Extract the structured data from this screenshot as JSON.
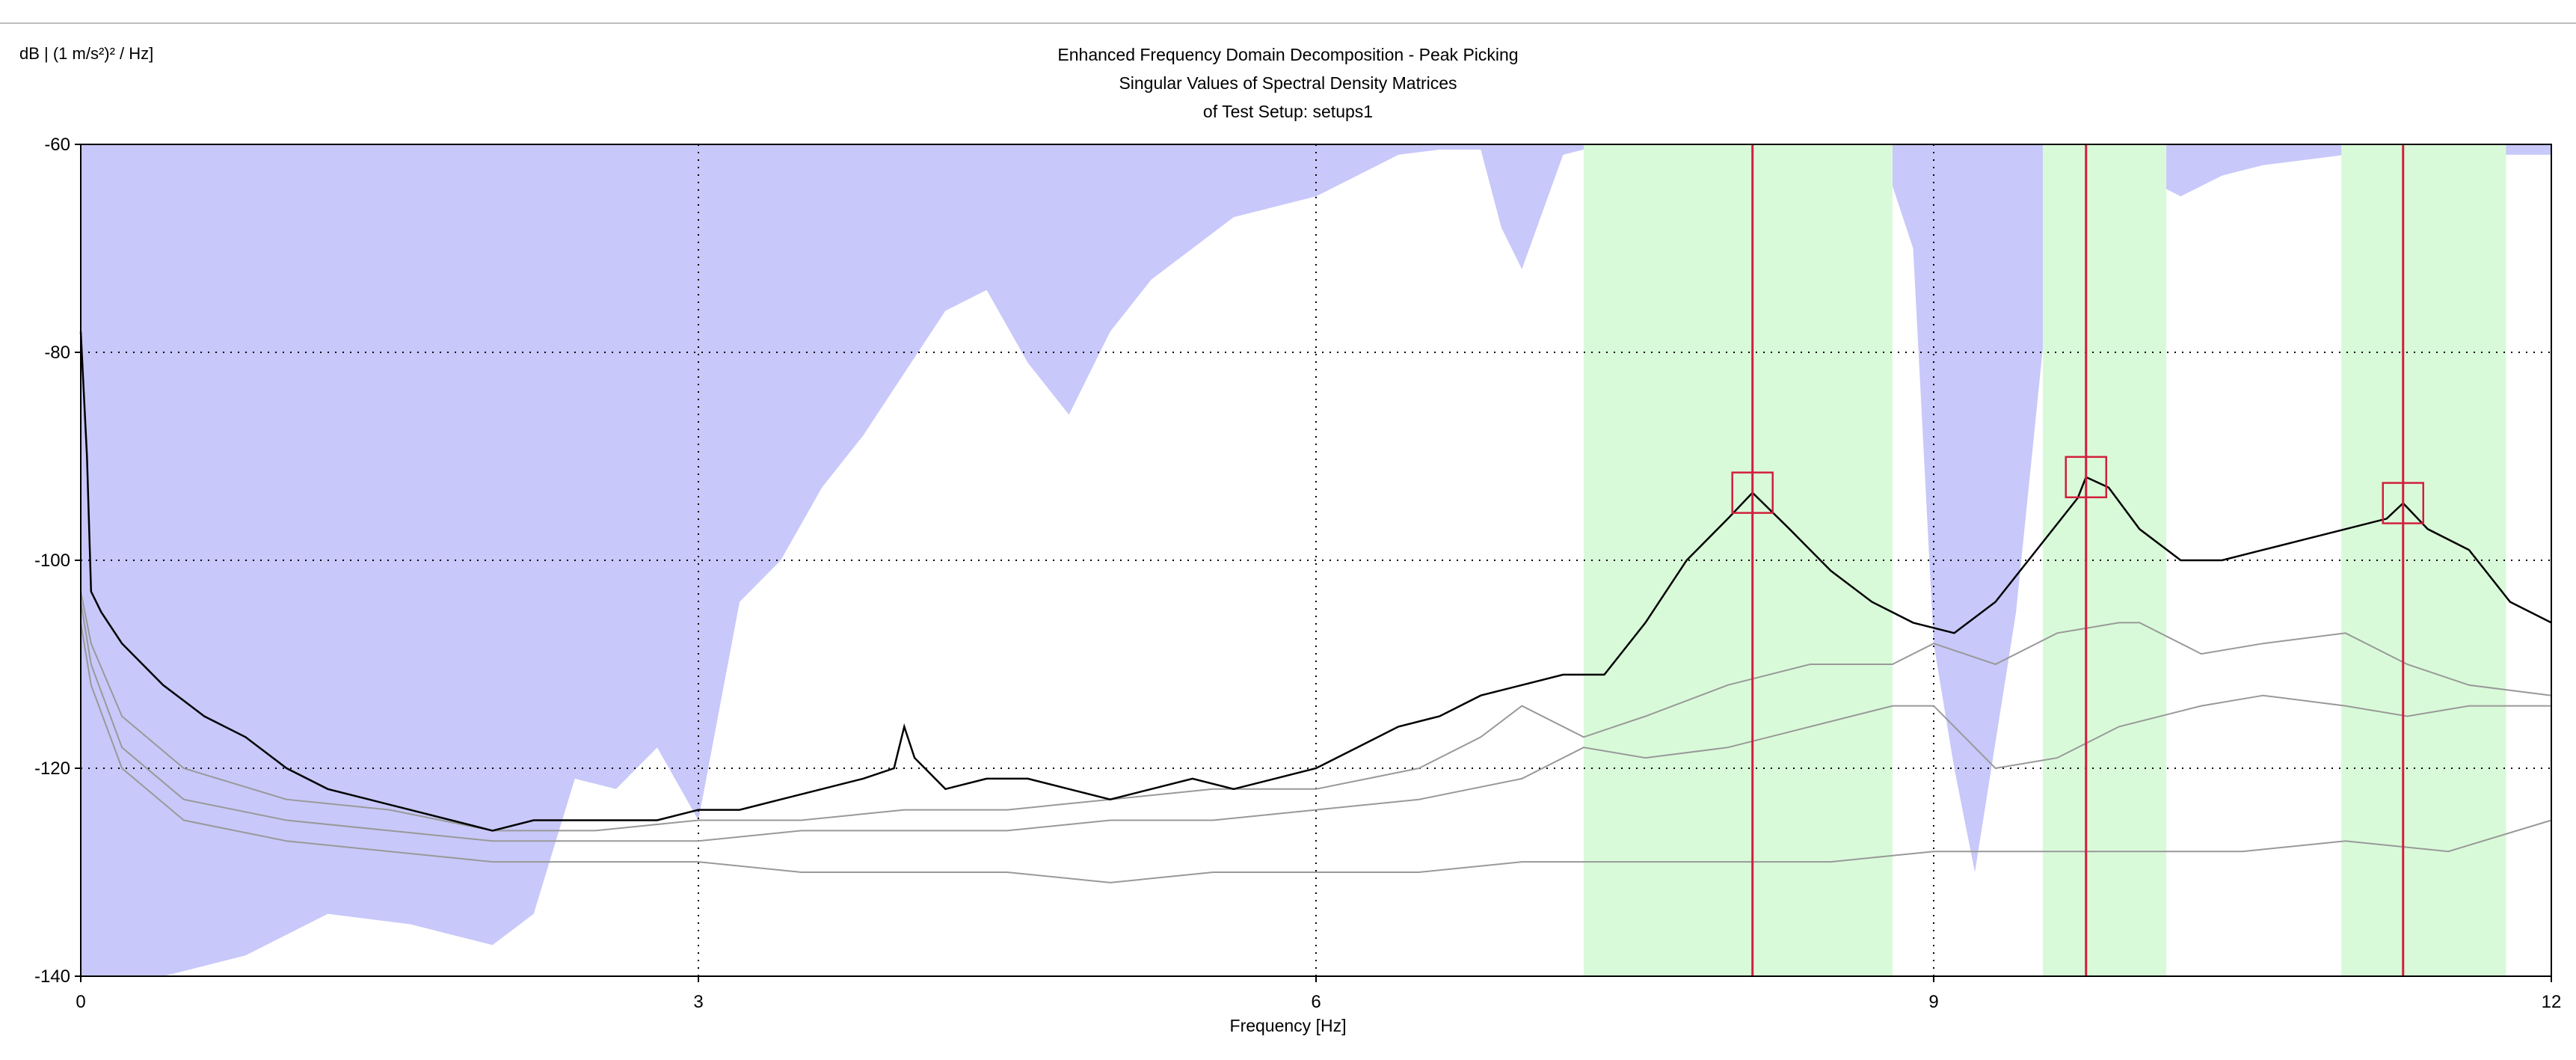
{
  "chart_data": {
    "type": "line",
    "title": "Enhanced Frequency Domain Decomposition - Peak Picking",
    "subtitle": [
      "Singular Values of Spectral Density Matrices",
      "of Test Setup: setups1"
    ],
    "xlabel": "Frequency [Hz]",
    "ylabel": "dB | (1 m/s²)² / Hz]",
    "xlim": [
      0,
      12
    ],
    "ylim": [
      -140,
      -60
    ],
    "x_ticks": [
      "0",
      "3",
      "6",
      "9",
      "12"
    ],
    "y_ticks": [
      "-60",
      "-80",
      "-100",
      "-120",
      "-140"
    ],
    "grid": "dotted",
    "colors": {
      "coherence_fill": "#c8c8fa",
      "selection_band": "#d9fad9",
      "first_singular_value": "#000000",
      "other_singular_values": "#999999",
      "peak_marker": "#d21e3c",
      "grid": "#000000"
    },
    "selection_bands": [
      [
        7.3,
        8.8
      ],
      [
        9.53,
        10.13
      ],
      [
        10.98,
        11.78
      ]
    ],
    "peaks": [
      {
        "x": 8.12,
        "y": -93.5
      },
      {
        "x": 9.74,
        "y": -92.0
      },
      {
        "x": 11.28,
        "y": -94.5
      }
    ],
    "series": [
      {
        "x": [
          0,
          0.03,
          0.05,
          0.1,
          0.2,
          0.4,
          0.6,
          0.8,
          1.0,
          1.2,
          1.4,
          1.6,
          1.8,
          2.0,
          2.2,
          2.4,
          2.6,
          2.8,
          3.0,
          3.2,
          3.4,
          3.6,
          3.8,
          3.95,
          4.0,
          4.05,
          4.2,
          4.4,
          4.6,
          4.8,
          5.0,
          5.2,
          5.4,
          5.6,
          5.8,
          6.0,
          6.2,
          6.4,
          6.6,
          6.8,
          7.0,
          7.2,
          7.4,
          7.6,
          7.8,
          8.0,
          8.12,
          8.3,
          8.5,
          8.7,
          8.9,
          9.1,
          9.3,
          9.5,
          9.7,
          9.74,
          9.85,
          10.0,
          10.2,
          10.4,
          10.6,
          10.8,
          11.0,
          11.2,
          11.28,
          11.4,
          11.6,
          11.8,
          12.0
        ],
        "values": [
          -78,
          -90,
          -103,
          -105,
          -108,
          -112,
          -115,
          -117,
          -120,
          -122,
          -123,
          -124,
          -125,
          -126,
          -125,
          -125,
          -125,
          -125,
          -124,
          -124,
          -123,
          -122,
          -121,
          -120,
          -116,
          -119,
          -122,
          -121,
          -121,
          -122,
          -123,
          -122,
          -121,
          -122,
          -121,
          -120,
          -118,
          -116,
          -115,
          -113,
          -112,
          -111,
          -111,
          -106,
          -100,
          -96,
          -93.5,
          -97,
          -101,
          -104,
          -106,
          -107,
          -104,
          -99,
          -94,
          -92,
          -93,
          -97,
          -100,
          -100,
          -99,
          -98,
          -97,
          -96,
          -94.5,
          -97,
          -99,
          -104,
          -106
        ]
      },
      {
        "x": [
          0,
          0.05,
          0.2,
          0.5,
          1.0,
          1.5,
          2.0,
          2.5,
          3.0,
          3.5,
          4.0,
          4.5,
          5.0,
          5.5,
          6.0,
          6.5,
          6.8,
          7.0,
          7.3,
          7.6,
          8.0,
          8.4,
          8.8,
          9.0,
          9.3,
          9.6,
          9.9,
          10.0,
          10.3,
          10.6,
          11.0,
          11.3,
          11.6,
          12.0
        ],
        "values": [
          -103,
          -108,
          -115,
          -120,
          -123,
          -124,
          -126,
          -126,
          -125,
          -125,
          -124,
          -124,
          -123,
          -122,
          -122,
          -120,
          -117,
          -114,
          -117,
          -115,
          -112,
          -110,
          -110,
          -108,
          -110,
          -107,
          -106,
          -106,
          -109,
          -108,
          -107,
          -110,
          -112,
          -113
        ]
      },
      {
        "x": [
          0,
          0.05,
          0.2,
          0.5,
          1.0,
          1.5,
          2.0,
          2.5,
          3.0,
          3.5,
          4.0,
          4.5,
          5.0,
          5.5,
          6.0,
          6.5,
          7.0,
          7.3,
          7.6,
          8.0,
          8.4,
          8.8,
          9.0,
          9.3,
          9.6,
          9.9,
          10.3,
          10.6,
          11.0,
          11.3,
          11.6,
          12.0
        ],
        "values": [
          -104,
          -110,
          -118,
          -123,
          -125,
          -126,
          -127,
          -127,
          -127,
          -126,
          -126,
          -126,
          -125,
          -125,
          -124,
          -123,
          -121,
          -118,
          -119,
          -118,
          -116,
          -114,
          -114,
          -120,
          -119,
          -116,
          -114,
          -113,
          -114,
          -115,
          -114,
          -114
        ]
      },
      {
        "x": [
          0,
          0.05,
          0.2,
          0.5,
          1.0,
          1.5,
          2.0,
          2.5,
          3.0,
          3.5,
          4.0,
          4.5,
          5.0,
          5.5,
          6.0,
          6.5,
          7.0,
          7.5,
          8.0,
          8.5,
          9.0,
          9.5,
          10.0,
          10.5,
          11.0,
          11.5,
          12.0
        ],
        "values": [
          -106,
          -112,
          -120,
          -125,
          -127,
          -128,
          -129,
          -129,
          -129,
          -130,
          -130,
          -130,
          -131,
          -130,
          -130,
          -130,
          -129,
          -129,
          -129,
          -129,
          -128,
          -128,
          -128,
          -128,
          -127,
          -128,
          -125
        ]
      }
    ],
    "coherence_band": {
      "x": [
        0,
        0.4,
        0.8,
        1.2,
        1.6,
        2.0,
        2.2,
        2.4,
        2.6,
        2.8,
        3.0,
        3.2,
        3.4,
        3.6,
        3.8,
        4.0,
        4.2,
        4.4,
        4.6,
        4.8,
        5.0,
        5.2,
        5.4,
        5.6,
        5.8,
        6.0,
        6.2,
        6.4,
        6.6,
        6.8,
        6.9,
        7.0,
        7.2,
        7.4,
        8.6,
        8.8,
        8.9,
        9.0,
        9.1,
        9.2,
        9.4,
        9.6,
        10.0,
        10.2,
        10.4,
        10.6,
        11.0,
        11.4,
        11.8,
        12.0
      ],
      "lower": [
        -140,
        -140,
        -138,
        -134,
        -135,
        -137,
        -134,
        -121,
        -122,
        -118,
        -125,
        -104,
        -100,
        -93,
        -88,
        -82,
        -76,
        -74,
        -81,
        -86,
        -78,
        -73,
        -70,
        -67,
        -66,
        -65,
        -63,
        -61,
        -60.5,
        -60.5,
        -68,
        -72,
        -61,
        -60,
        -60,
        -64,
        -70,
        -108,
        -120,
        -130,
        -105,
        -66,
        -63,
        -65,
        -63,
        -62,
        -61,
        -61,
        -61,
        -61
      ]
    }
  }
}
